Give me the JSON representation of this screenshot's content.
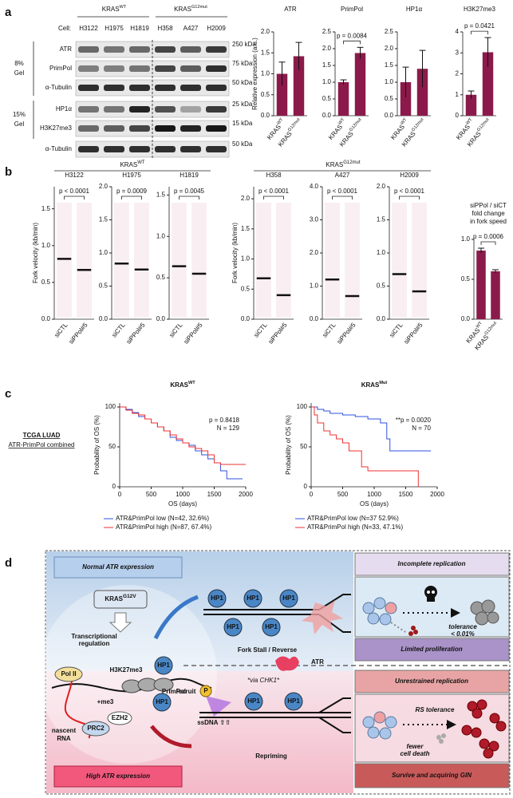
{
  "panel_labels": [
    "a",
    "b",
    "c",
    "d"
  ],
  "blot": {
    "cell_label": "Cell:",
    "groups": [
      {
        "base": "KRAS",
        "sup": "WT"
      },
      {
        "base": "KRAS",
        "sup": "G12mut"
      }
    ],
    "cells": [
      "H3122",
      "H1975",
      "H1819",
      "H358",
      "A427",
      "H2009"
    ],
    "rows": [
      "ATR",
      "PrimPol",
      "α-Tubulin",
      "HP1α",
      "H3K27me3",
      "α-Tubulin"
    ],
    "kda": [
      "250 kDa",
      "75 kDa",
      "50 kDa",
      "25 kDa",
      "15 kDa",
      "50 kDa"
    ],
    "gels": [
      [
        "8%",
        "Gel"
      ],
      [
        "15%",
        "Gel"
      ]
    ]
  },
  "groups_b": [
    {
      "base": "KRAS",
      "sup": "WT"
    },
    {
      "base": "KRAS",
      "sup": "G12mut"
    }
  ],
  "tcga": [
    "TCGA LUAD",
    "ATR-PrimPol combined"
  ],
  "chart_data": [
    {
      "type": "bar",
      "title": "ATR",
      "ylabel": "Relative expression (a.u.)",
      "categories": [
        {
          "base": "KRAS",
          "sup": "WT"
        },
        {
          "base": "KRAS",
          "sup": "G12mut"
        }
      ],
      "values": [
        1.0,
        1.42
      ],
      "errors": [
        0.28,
        0.33
      ],
      "color": "#8b1a4a",
      "ylim": [
        0,
        2.0
      ],
      "yticks": [
        {
          "value": 0,
          "label": "0.0"
        },
        {
          "value": 0.5,
          "label": "0.5"
        },
        {
          "value": 1,
          "label": "1.0"
        },
        {
          "value": 1.5,
          "label": "1.5"
        },
        {
          "value": 2,
          "label": "2.0"
        }
      ]
    },
    {
      "type": "bar",
      "title": "PrimPol",
      "categories": [
        {
          "base": "KRAS",
          "sup": "WT"
        },
        {
          "base": "KRAS",
          "sup": "G12mut"
        }
      ],
      "values": [
        1.0,
        1.87
      ],
      "errors": [
        0.07,
        0.17
      ],
      "color": "#8b1a4a",
      "ylim": [
        0,
        2.5
      ],
      "pvalue": "p = 0.0084",
      "yticks": [
        {
          "value": 0,
          "label": "0.0"
        },
        {
          "value": 0.5,
          "label": "0.5"
        },
        {
          "value": 1,
          "label": "1.0"
        },
        {
          "value": 1.5,
          "label": "1.5"
        },
        {
          "value": 2,
          "label": "2.0"
        },
        {
          "value": 2.5,
          "label": "2.5"
        }
      ]
    },
    {
      "type": "bar",
      "title": "HP1α",
      "categories": [
        {
          "base": "KRAS",
          "sup": "WT"
        },
        {
          "base": "KRAS",
          "sup": "G12mut"
        }
      ],
      "values": [
        1.0,
        1.4
      ],
      "errors": [
        0.45,
        0.55
      ],
      "color": "#8b1a4a",
      "ylim": [
        0,
        2.5
      ],
      "yticks": [
        {
          "value": 0,
          "label": "0.0"
        },
        {
          "value": 0.5,
          "label": "0.5"
        },
        {
          "value": 1,
          "label": "1.0"
        },
        {
          "value": 1.5,
          "label": "1.5"
        },
        {
          "value": 2,
          "label": "2.0"
        },
        {
          "value": 2.5,
          "label": "2.5"
        }
      ]
    },
    {
      "type": "bar",
      "title": "H3K27me3",
      "categories": [
        {
          "base": "KRAS",
          "sup": "WT"
        },
        {
          "base": "KRAS",
          "sup": "G12mut"
        }
      ],
      "values": [
        1.0,
        3.03
      ],
      "errors": [
        0.18,
        0.7
      ],
      "color": "#8b1a4a",
      "ylim": [
        0,
        4
      ],
      "pvalue": "p = 0.0421",
      "yticks": [
        0,
        1,
        2,
        3,
        4
      ]
    },
    {
      "type": "strip",
      "title": "H3122",
      "ylabel": "Fork velocity (kb/min)",
      "categories": [
        "siCTL",
        "siPPol#5"
      ],
      "values": [
        0.82,
        0.67
      ],
      "color": "#b0306a",
      "ylim": [
        0,
        1.8
      ],
      "pvalue": "p < 0.0001",
      "yticks": [
        {
          "value": 0,
          "label": "0.0"
        },
        {
          "value": 0.5,
          "label": "0.5"
        },
        {
          "value": 1,
          "label": "1.0"
        },
        {
          "value": 1.5,
          "label": "1.5"
        }
      ]
    },
    {
      "type": "strip",
      "title": "H1975",
      "categories": [
        "siCTL",
        "siPPol#5"
      ],
      "values": [
        0.84,
        0.75
      ],
      "color": "#b0306a",
      "ylim": [
        0,
        2.0
      ],
      "pvalue": "p = 0.0009",
      "yticks": [
        {
          "value": 0,
          "label": "0.0"
        },
        {
          "value": 0.5,
          "label": "0.5"
        },
        {
          "value": 1,
          "label": "1.0"
        },
        {
          "value": 1.5,
          "label": "1.5"
        },
        {
          "value": 2,
          "label": "2.0"
        }
      ]
    },
    {
      "type": "strip",
      "title": "H1819",
      "categories": [
        "siCTL",
        "siPPol#5"
      ],
      "values": [
        0.64,
        0.55
      ],
      "color": "#b0306a",
      "ylim": [
        0,
        1.6
      ],
      "pvalue": "p = 0.0045",
      "yticks": [
        {
          "value": 0,
          "label": "0.0"
        },
        {
          "value": 0.5,
          "label": "0.5"
        },
        {
          "value": 1,
          "label": "1.0"
        },
        {
          "value": 1.5,
          "label": "1.5"
        }
      ]
    },
    {
      "type": "strip",
      "title": "H358",
      "ylabel": "Fork velocity (kb/min)",
      "categories": [
        "siCTL",
        "siPPol#5"
      ],
      "values": [
        0.68,
        0.4
      ],
      "color": "#b0306a",
      "ylim": [
        0,
        2.2
      ],
      "pvalue": "p < 0.0001",
      "yticks": [
        {
          "value": 0,
          "label": "0.0"
        },
        {
          "value": 0.5,
          "label": "0.5"
        },
        {
          "value": 1,
          "label": "1.0"
        },
        {
          "value": 1.5,
          "label": "1.5"
        },
        {
          "value": 2,
          "label": "2.0"
        }
      ]
    },
    {
      "type": "strip",
      "title": "A427",
      "categories": [
        "siCTL",
        "siPPol#5"
      ],
      "values": [
        1.2,
        0.7
      ],
      "color": "#b0306a",
      "ylim": [
        0,
        4.0
      ],
      "pvalue": "p < 0.0001",
      "yticks": [
        {
          "value": 0,
          "label": "0.0"
        },
        {
          "value": 1,
          "label": "1.0"
        },
        {
          "value": 2,
          "label": "2.0"
        },
        {
          "value": 3,
          "label": "3.0"
        },
        {
          "value": 4,
          "label": "4.0"
        }
      ]
    },
    {
      "type": "strip",
      "title": "H2009",
      "categories": [
        "siCTL",
        "siPPol#5"
      ],
      "values": [
        0.68,
        0.42
      ],
      "color": "#b0306a",
      "ylim": [
        0,
        2.0
      ],
      "pvalue": "p < 0.0001",
      "yticks": [
        {
          "value": 0,
          "label": "0.0"
        },
        {
          "value": 0.5,
          "label": "0.5"
        },
        {
          "value": 1,
          "label": "1.0"
        },
        {
          "value": 1.5,
          "label": "1.5"
        },
        {
          "value": 2,
          "label": "2.0"
        }
      ]
    },
    {
      "type": "bar",
      "title": [
        "siPPol / siCT",
        "fold change",
        "in fork speed"
      ],
      "categories": [
        {
          "base": "KRAS",
          "sup": "WT"
        },
        {
          "base": "KRAS",
          "sup": "G12mut"
        }
      ],
      "values": [
        0.86,
        0.6
      ],
      "errors": [
        0.03,
        0.02
      ],
      "color": "#8b1a4a",
      "ylim": [
        0,
        1.0
      ],
      "pvalue": "p = 0.0006",
      "yticks": [
        {
          "value": 0,
          "label": "0.0"
        },
        {
          "value": 0.5,
          "label": "0.5"
        },
        {
          "value": 1,
          "label": "1.0"
        }
      ]
    },
    {
      "type": "step",
      "title": {
        "base": "KRAS",
        "sup": "WT"
      },
      "xlabel": "OS (days)",
      "ylabel": "Probability of OS (%)",
      "xlim": [
        0,
        2000
      ],
      "xticks": [
        0,
        500,
        1000,
        1500,
        2000
      ],
      "ylim": [
        0,
        105
      ],
      "yticks": [
        0,
        50,
        100
      ],
      "annotations": [
        "p = 0.8418",
        "N = 129"
      ],
      "series": [
        {
          "name": "ATR&PrimPol low (N=42, 32.6%)",
          "color": "#3050e0",
          "x": [
            0,
            100,
            200,
            300,
            400,
            500,
            600,
            700,
            800,
            900,
            1000,
            1100,
            1200,
            1300,
            1400,
            1500,
            1600,
            1700,
            1950
          ],
          "values": [
            100,
            97,
            93,
            88,
            85,
            80,
            75,
            70,
            62,
            58,
            55,
            52,
            45,
            40,
            35,
            30,
            20,
            10,
            10
          ]
        },
        {
          "name": "ATR&PrimPol high (N=87, 67.4%)",
          "color": "#f03030",
          "x": [
            0,
            100,
            200,
            300,
            400,
            500,
            600,
            700,
            800,
            900,
            1000,
            1100,
            1200,
            1300,
            1400,
            1500,
            1600,
            1700,
            2000
          ],
          "values": [
            100,
            96,
            92,
            90,
            85,
            80,
            75,
            70,
            65,
            60,
            55,
            50,
            48,
            45,
            40,
            30,
            28,
            28,
            28
          ]
        }
      ]
    },
    {
      "type": "step",
      "title": {
        "base": "KRAS",
        "sup": "Mut"
      },
      "xlabel": "OS (days)",
      "ylabel": "Probability of OS (%)",
      "xlim": [
        0,
        2000
      ],
      "xticks": [
        0,
        500,
        1000,
        1500,
        2000
      ],
      "ylim": [
        0,
        105
      ],
      "yticks": [
        0,
        50,
        100
      ],
      "annotations": [
        "**p = 0.0020",
        "N = 70"
      ],
      "series": [
        {
          "name": "ATR&PrimPol low (N=37 52.9%)",
          "color": "#3050e0",
          "x": [
            0,
            100,
            200,
            300,
            500,
            700,
            900,
            1100,
            1200,
            1250,
            1500,
            1900
          ],
          "values": [
            100,
            97,
            95,
            92,
            90,
            88,
            85,
            80,
            60,
            45,
            45,
            45
          ]
        },
        {
          "name": "ATR&PrimPol high (N=33, 47.1%)",
          "color": "#f03030",
          "x": [
            0,
            50,
            100,
            200,
            300,
            400,
            500,
            600,
            800,
            900,
            1000,
            1700
          ],
          "values": [
            100,
            90,
            80,
            70,
            65,
            60,
            55,
            45,
            25,
            20,
            20,
            0
          ]
        }
      ]
    }
  ],
  "diagram": {
    "normal": "Normal ATR expression",
    "high": "High ATR expression",
    "kras": {
      "base": "KRAS",
      "sup": "G12V"
    },
    "transcriptional": [
      "Transcriptional",
      "regulation"
    ],
    "h3k27me3": "H3K27me3",
    "hp1": "HP1",
    "pol2": "Pol II",
    "recruit": "recruit",
    "me3": "+me3",
    "ezh2": "EZH2",
    "prc2": "PRC2",
    "nascent": [
      "nascent",
      "RNA"
    ],
    "fork_stall": "Fork Stall / Reverse",
    "atr": "ATR",
    "via_chk1": "*via CHK1*",
    "primpol": "PrimPol",
    "p": "P",
    "ssdna": "ssDNA ⇧⇧",
    "repriming": "Repriming",
    "right": {
      "incomplete": "Incomplete replication",
      "tolerance": [
        "tolerance",
        "< 0.01%"
      ],
      "limited": "Limited proliferation",
      "unrestrained": "Unrestrained replication",
      "rs_tolerance": "RS tolerance",
      "fewer": [
        "fewer",
        "cell death"
      ],
      "survive": "Survive and acquiring GIN"
    }
  }
}
